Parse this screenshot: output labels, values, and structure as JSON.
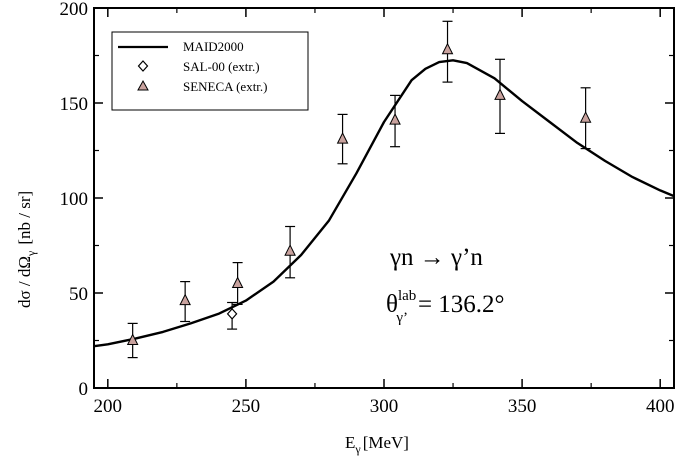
{
  "chart_data": {
    "type": "scatter",
    "xlabel_main": "E",
    "xlabel_sub": "γ",
    "xlabel_unit": "[MeV]",
    "ylabel_main": "dσ / dΩ",
    "ylabel_sub": "γ",
    "ylabel_unit": "[nb / sr]",
    "xlim": [
      195,
      405
    ],
    "ylim": [
      0,
      200
    ],
    "xticks": [
      200,
      250,
      300,
      350,
      400
    ],
    "yticks": [
      0,
      50,
      100,
      150,
      200
    ],
    "grid": false,
    "legend_position": "top-left",
    "annotations": {
      "reaction": "γn → γ’n",
      "angle_symbol": "θ",
      "angle_sup": "lab",
      "angle_sub": "γ’",
      "angle_value": "= 136.2°"
    },
    "series": [
      {
        "name": "MAID2000",
        "kind": "line",
        "color": "#000000",
        "x": [
          195,
          200,
          210,
          220,
          230,
          240,
          250,
          260,
          270,
          280,
          290,
          300,
          310,
          315,
          320,
          325,
          330,
          340,
          350,
          360,
          370,
          380,
          390,
          400,
          405
        ],
        "y": [
          22,
          23,
          26,
          29.5,
          34,
          39,
          46,
          56,
          70,
          88,
          113,
          140,
          162,
          168,
          171.5,
          172.5,
          171,
          163,
          151,
          140,
          129,
          119.5,
          111,
          104,
          101
        ]
      },
      {
        "name": "SAL-00 (extr.)",
        "kind": "points",
        "marker": "diamond",
        "color": "#ffffff",
        "x": [
          245
        ],
        "y": [
          39
        ],
        "yerr_low": [
          8
        ],
        "yerr_high": [
          6
        ]
      },
      {
        "name": "SENECA (extr.)",
        "kind": "points",
        "marker": "triangle",
        "color": "#c9a29e",
        "x": [
          209,
          228,
          247,
          266,
          285,
          304,
          323,
          342,
          373
        ],
        "y": [
          25,
          46,
          55,
          72,
          131,
          141,
          178,
          154,
          142
        ],
        "yerr_low": [
          9,
          11,
          11,
          14,
          13,
          14,
          17,
          20,
          16
        ],
        "yerr_high": [
          9,
          10,
          11,
          13,
          13,
          13,
          15,
          19,
          16
        ]
      }
    ]
  }
}
